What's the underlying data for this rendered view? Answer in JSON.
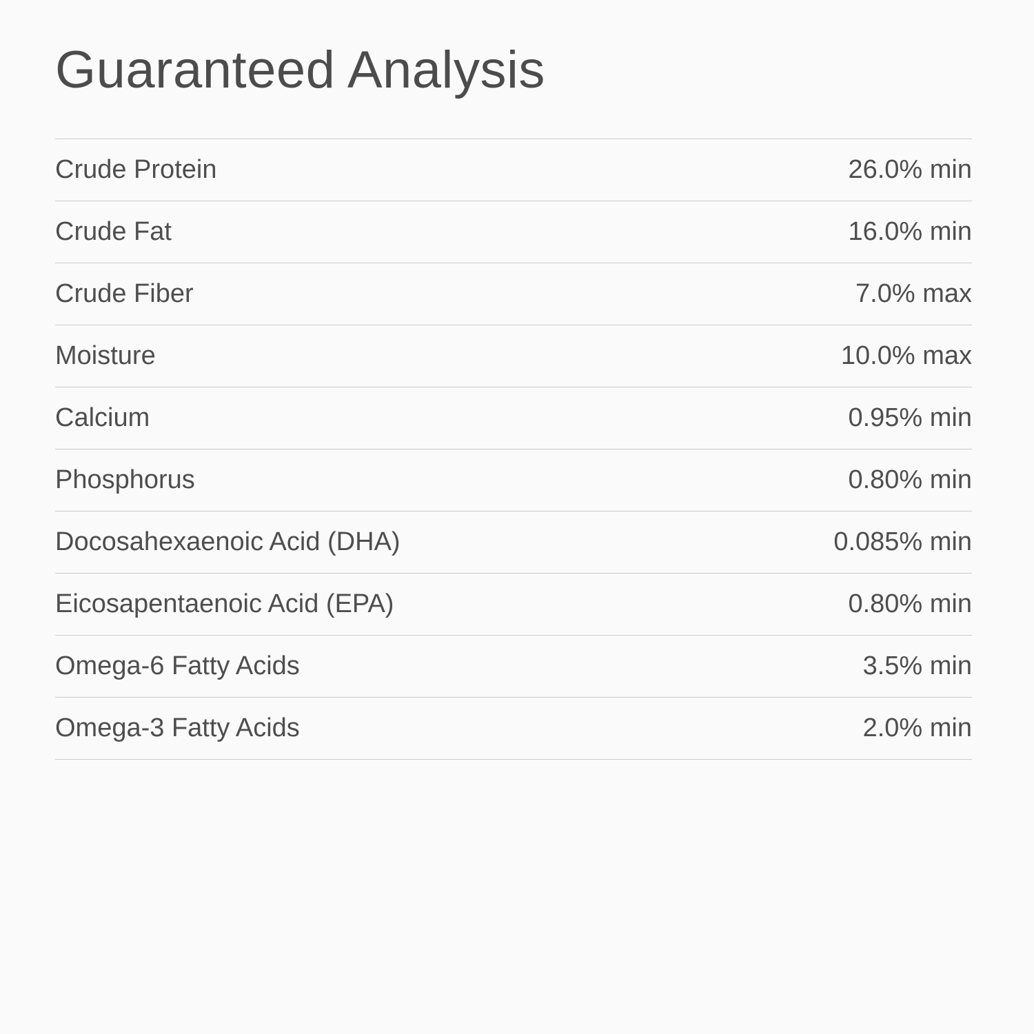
{
  "section": {
    "title": "Guaranteed Analysis"
  },
  "rows": [
    {
      "label": "Crude Protein",
      "value": "26.0% min"
    },
    {
      "label": "Crude Fat",
      "value": "16.0% min"
    },
    {
      "label": "Crude Fiber",
      "value": "7.0% max"
    },
    {
      "label": "Moisture",
      "value": "10.0% max"
    },
    {
      "label": "Calcium",
      "value": "0.95% min"
    },
    {
      "label": "Phosphorus",
      "value": "0.80% min"
    },
    {
      "label": "Docosahexaenoic Acid (DHA)",
      "value": "0.085% min"
    },
    {
      "label": "Eicosapentaenoic Acid (EPA)",
      "value": "0.80% min"
    },
    {
      "label": "Omega-6 Fatty Acids",
      "value": "3.5% min"
    },
    {
      "label": "Omega-3 Fatty Acids",
      "value": "2.0% min"
    }
  ],
  "colors": {
    "background": "#fafafa",
    "text": "#4c4c4c",
    "divider": "#cbcbcb"
  }
}
